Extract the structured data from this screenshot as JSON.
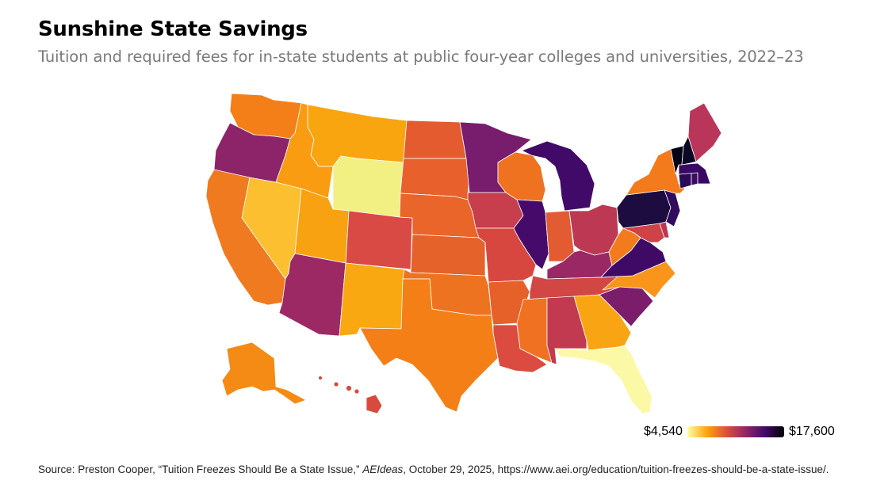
{
  "title": "Sunshine State Savings",
  "subtitle": "Tuition and required fees for in-state students at public four-year colleges and universities, 2022–23",
  "legend": {
    "min_label": "$4,540",
    "max_label": "$17,600",
    "min_value": 4540,
    "max_value": 17600,
    "colors": [
      "#fcffa4",
      "#fca50a",
      "#dd513a",
      "#932667",
      "#420a68",
      "#000004"
    ]
  },
  "source": {
    "prefix": "Source: Preston Cooper, “Tuition Freezes Should Be a State Issue,” ",
    "publication": "AEIdeas",
    "suffix": ", October 29, 2025, https://www.aei.org/education/tuition-freezes-should-be-a-state-issue/."
  },
  "states": [
    {
      "id": "WA",
      "color": "#f47e18"
    },
    {
      "id": "OR",
      "color": "#8d2369"
    },
    {
      "id": "CA",
      "color": "#f07a1f"
    },
    {
      "id": "ID",
      "color": "#f99c12"
    },
    {
      "id": "NV",
      "color": "#fbbf30"
    },
    {
      "id": "MT",
      "color": "#f9a510"
    },
    {
      "id": "WY",
      "color": "#f3f083"
    },
    {
      "id": "UT",
      "color": "#f8a111"
    },
    {
      "id": "AZ",
      "color": "#9d2964"
    },
    {
      "id": "CO",
      "color": "#d84a43"
    },
    {
      "id": "NM",
      "color": "#f9a811"
    },
    {
      "id": "ND",
      "color": "#e35b2f"
    },
    {
      "id": "SD",
      "color": "#e8602c"
    },
    {
      "id": "NE",
      "color": "#ea6529"
    },
    {
      "id": "KS",
      "color": "#e5622b"
    },
    {
      "id": "OK",
      "color": "#ee7320"
    },
    {
      "id": "TX",
      "color": "#f47f17"
    },
    {
      "id": "MN",
      "color": "#781c6d"
    },
    {
      "id": "IA",
      "color": "#c73e4c"
    },
    {
      "id": "MO",
      "color": "#d7473f"
    },
    {
      "id": "AR",
      "color": "#e6602a"
    },
    {
      "id": "LA",
      "color": "#dc4b3f"
    },
    {
      "id": "WI",
      "color": "#ef7221"
    },
    {
      "id": "IL",
      "color": "#460b6a"
    },
    {
      "id": "MS",
      "color": "#f07122"
    },
    {
      "id": "MI",
      "color": "#420a68"
    },
    {
      "id": "IN",
      "color": "#e35b32"
    },
    {
      "id": "KY",
      "color": "#9a2865"
    },
    {
      "id": "TN",
      "color": "#d24644"
    },
    {
      "id": "AL",
      "color": "#c13a4f"
    },
    {
      "id": "OH",
      "color": "#bd3853"
    },
    {
      "id": "WV",
      "color": "#f37a1d"
    },
    {
      "id": "GA",
      "color": "#f9a513"
    },
    {
      "id": "FL",
      "color": "#fbf9a6"
    },
    {
      "id": "SC",
      "color": "#7c1d6c"
    },
    {
      "id": "NC",
      "color": "#f9951a"
    },
    {
      "id": "VA",
      "color": "#3f0a66"
    },
    {
      "id": "MD",
      "color": "#cf4348"
    },
    {
      "id": "DE",
      "color": "#bc3754"
    },
    {
      "id": "PA",
      "color": "#1d0c3f"
    },
    {
      "id": "NJ",
      "color": "#320a5e"
    },
    {
      "id": "NY",
      "color": "#f37b1c"
    },
    {
      "id": "CT",
      "color": "#2b0b57"
    },
    {
      "id": "RI",
      "color": "#3d0a63"
    },
    {
      "id": "MA",
      "color": "#3a0963"
    },
    {
      "id": "VT",
      "color": "#050416"
    },
    {
      "id": "NH",
      "color": "#0d0826"
    },
    {
      "id": "ME",
      "color": "#b9365a"
    },
    {
      "id": "AK",
      "color": "#f58a14"
    },
    {
      "id": "HI",
      "color": "#d94a3e"
    }
  ]
}
